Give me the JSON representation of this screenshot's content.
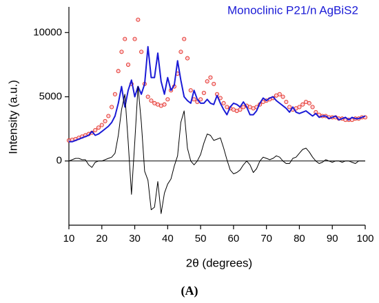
{
  "chart_data": {
    "type": "line",
    "title": "Monoclinic P21/n  AgBiS2",
    "title_color": "#1a1ad6",
    "xlabel": "2θ  (degrees)",
    "ylabel": "Intensity (a.u.)",
    "caption": "(A)",
    "xlim": [
      10,
      100
    ],
    "xticks": [
      10,
      20,
      30,
      40,
      50,
      60,
      70,
      80,
      90,
      100
    ],
    "ylim": [
      -5000,
      12000
    ],
    "yticks": [
      0,
      5000,
      10000
    ],
    "hline": 0,
    "x": [
      10,
      11,
      12,
      13,
      14,
      15,
      16,
      17,
      18,
      19,
      20,
      21,
      22,
      23,
      24,
      25,
      26,
      27,
      28,
      29,
      30,
      31,
      32,
      33,
      34,
      35,
      36,
      37,
      38,
      39,
      40,
      41,
      42,
      43,
      44,
      45,
      46,
      47,
      48,
      49,
      50,
      51,
      52,
      53,
      54,
      55,
      56,
      57,
      58,
      59,
      60,
      61,
      62,
      63,
      64,
      65,
      66,
      67,
      68,
      69,
      70,
      71,
      72,
      73,
      74,
      75,
      76,
      77,
      78,
      79,
      80,
      81,
      82,
      83,
      84,
      85,
      86,
      87,
      88,
      89,
      90,
      91,
      92,
      93,
      94,
      95,
      96,
      97,
      98,
      99,
      100
    ],
    "series": [
      {
        "style": "markers",
        "color": "#e03020",
        "values": [
          1600,
          1650,
          1700,
          1800,
          1900,
          2000,
          2100,
          2200,
          2400,
          2600,
          2800,
          3100,
          3500,
          4200,
          5200,
          7000,
          8500,
          9500,
          7500,
          6000,
          9500,
          11000,
          8500,
          6000,
          5000,
          4700,
          4500,
          4400,
          4300,
          4400,
          4800,
          5500,
          5800,
          6800,
          8500,
          9500,
          8000,
          5500,
          4800,
          4600,
          4800,
          5300,
          6200,
          6500,
          6000,
          5200,
          4900,
          4500,
          4200,
          4100,
          4000,
          3900,
          4000,
          4200,
          4300,
          4200,
          4100,
          4200,
          4400,
          4600,
          4700,
          4800,
          4900,
          5100,
          5200,
          5000,
          4600,
          4200,
          4000,
          4100,
          4200,
          4400,
          4600,
          4500,
          4200,
          3800,
          3600,
          3500,
          3500,
          3400,
          3400,
          3400,
          3300,
          3300,
          3200,
          3200,
          3200,
          3300,
          3300,
          3400,
          3400
        ]
      },
      {
        "style": "line",
        "color": "#1a1ad6",
        "values": [
          1500,
          1500,
          1600,
          1700,
          1800,
          1900,
          2000,
          2300,
          2000,
          2100,
          2300,
          2500,
          2700,
          3000,
          3500,
          4500,
          5800,
          4200,
          5500,
          6300,
          5000,
          5800,
          5200,
          6000,
          8900,
          6500,
          6500,
          8400,
          6200,
          5200,
          6500,
          5500,
          5900,
          7800,
          6300,
          5000,
          4700,
          4500,
          5500,
          4800,
          4500,
          4500,
          4800,
          4500,
          4400,
          5100,
          4500,
          4000,
          3600,
          4200,
          4500,
          4400,
          4200,
          4600,
          4200,
          3600,
          3600,
          3900,
          4500,
          4900,
          4700,
          4900,
          5000,
          4700,
          4500,
          4300,
          4100,
          3800,
          4200,
          3800,
          3700,
          3800,
          3900,
          3700,
          3500,
          3700,
          3400,
          3500,
          3500,
          3300,
          3400,
          3500,
          3200,
          3300,
          3400,
          3200,
          3400,
          3300,
          3300,
          3400,
          3500
        ]
      },
      {
        "style": "line",
        "color": "#000000",
        "values": [
          0,
          100,
          200,
          200,
          100,
          100,
          -300,
          -500,
          -100,
          0,
          0,
          100,
          200,
          300,
          600,
          2000,
          4000,
          5200,
          1500,
          -2600,
          1500,
          5800,
          3000,
          -800,
          -1500,
          -3800,
          -3600,
          -1600,
          -4100,
          -2500,
          -1800,
          -1400,
          -400,
          400,
          3000,
          3900,
          1000,
          0,
          -300,
          0,
          500,
          1400,
          2100,
          2000,
          1600,
          1700,
          1800,
          1000,
          100,
          -700,
          -1000,
          -900,
          -700,
          -300,
          0,
          -300,
          -900,
          -600,
          0,
          300,
          200,
          100,
          200,
          400,
          300,
          0,
          -200,
          -200,
          200,
          300,
          600,
          900,
          1000,
          700,
          300,
          0,
          -200,
          -100,
          100,
          0,
          -100,
          0,
          0,
          -100,
          0,
          0,
          -100,
          -200,
          0,
          0,
          0
        ]
      }
    ]
  }
}
